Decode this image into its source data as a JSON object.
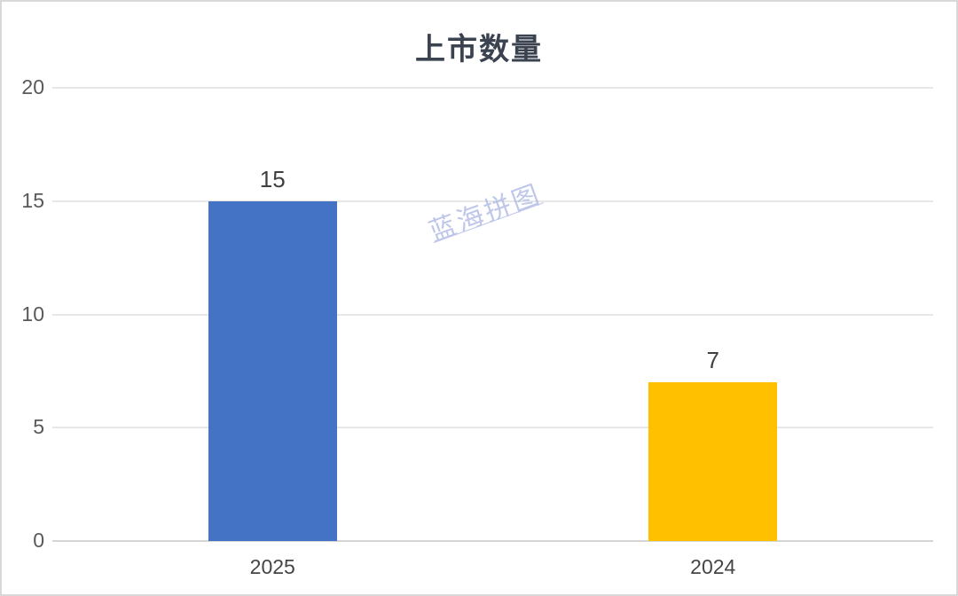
{
  "chart": {
    "watermark_text": "蓝海拼图"
  },
  "chart_data": {
    "type": "bar",
    "title": "上市数量",
    "categories": [
      "2025",
      "2024"
    ],
    "values": [
      15,
      7
    ],
    "data_labels": [
      "15",
      "7"
    ],
    "bar_colors": [
      "#4472C4",
      "#FFC000"
    ],
    "yticks": [
      0,
      5,
      10,
      15,
      20
    ],
    "ylim": [
      0,
      20
    ],
    "xlabel": "",
    "ylabel": "",
    "grid": true,
    "legend": false
  },
  "colors": {
    "title": "#3B4350",
    "tick_label": "#595959",
    "category_label": "#454545",
    "data_label": "#404040",
    "gridline": "#E7E7E7",
    "axis_line": "#D5D5D5",
    "bar_blue": "#4472C4",
    "bar_gold": "#FFC000",
    "watermark": "#A9B5E3",
    "frame_border": "#D9D9D9"
  }
}
